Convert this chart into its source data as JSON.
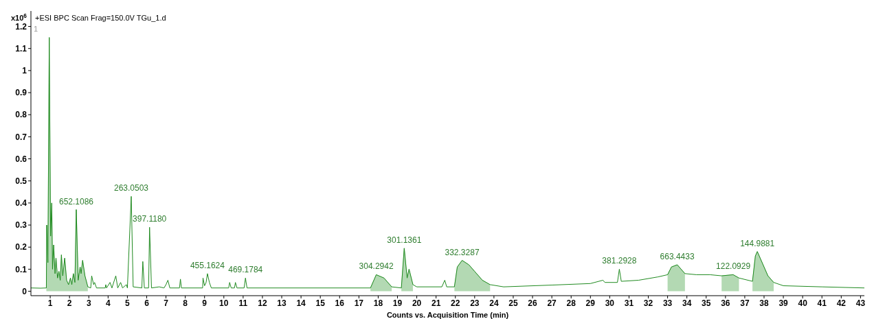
{
  "chart_data": {
    "type": "line",
    "title": "+ESI BPC Scan Frag=150.0V TGu_1.d",
    "xlabel": "Counts vs. Acquisition Time (min)",
    "ylabel": "x10$^{6}$",
    "x": [
      0,
      0.5,
      0.8,
      0.82,
      0.88,
      0.95,
      1.02,
      1.08,
      1.12,
      1.18,
      1.25,
      1.3,
      1.38,
      1.45,
      1.52,
      1.58,
      1.65,
      1.75,
      1.85,
      1.95,
      2.05,
      2.12,
      2.2,
      2.28,
      2.35,
      2.45,
      2.55,
      2.6,
      2.68,
      2.8,
      2.95,
      3.1,
      3.15,
      3.25,
      3.3,
      3.4,
      3.85,
      3.88,
      3.92,
      4.1,
      4.2,
      4.4,
      4.5,
      4.65,
      4.75,
      4.95,
      5.0,
      5.2,
      5.3,
      5.75,
      5.8,
      5.88,
      6.1,
      6.15,
      6.25,
      6.65,
      6.9,
      7.0,
      7.1,
      7.2,
      7.7,
      7.75,
      7.8,
      8.9,
      8.92,
      9.0,
      9.08,
      9.15,
      9.25,
      9.35,
      10.25,
      10.3,
      10.38,
      10.55,
      10.6,
      10.68,
      11.05,
      11.12,
      11.2,
      17.6,
      17.9,
      18.3,
      18.7,
      19.2,
      19.35,
      19.5,
      19.6,
      19.8,
      20.0,
      21.3,
      21.45,
      21.55,
      21.95,
      22.1,
      22.35,
      22.7,
      23.0,
      23.4,
      23.8,
      24.5,
      27,
      29,
      29.65,
      29.75,
      30.4,
      30.5,
      30.6,
      31.5,
      32.5,
      33.0,
      33.2,
      33.5,
      33.9,
      34.5,
      35.2,
      35.8,
      36.4,
      36.7,
      37.4,
      37.55,
      37.65,
      38.2,
      38.5,
      39,
      41,
      43.2
    ],
    "series": [
      {
        "type": "area",
        "color": "#b3d9b3",
        "x": [
          0.8,
          0.82,
          0.88,
          0.95,
          1.02,
          1.08,
          1.12,
          1.18,
          1.25,
          1.3,
          1.38,
          1.45,
          1.52,
          1.58,
          1.65,
          1.75,
          1.85,
          1.95,
          2.05,
          2.12,
          2.2,
          2.28,
          2.35,
          2.45,
          2.55,
          2.6,
          2.68,
          2.8,
          2.95
        ],
        "values": [
          0.015,
          0.3,
          0.13,
          1.15,
          0.25,
          0.4,
          0.1,
          0.21,
          0.08,
          0.15,
          0.06,
          0.09,
          0.05,
          0.165,
          0.07,
          0.15,
          0.05,
          0.03,
          0.06,
          0.03,
          0.08,
          0.04,
          0.37,
          0.05,
          0.11,
          0.08,
          0.14,
          0.07,
          0.02
        ]
      },
      {
        "type": "area",
        "color": "#b3d9b3",
        "x": [
          17.6,
          17.9,
          18.3,
          18.7
        ],
        "values": [
          0.015,
          0.075,
          0.06,
          0.02
        ]
      },
      {
        "type": "area",
        "color": "#b3d9b3",
        "x": [
          19.2,
          19.35,
          19.5,
          19.6,
          19.8
        ],
        "values": [
          0.015,
          0.195,
          0.06,
          0.1,
          0.03
        ]
      },
      {
        "type": "area",
        "color": "#b3d9b3",
        "x": [
          21.95,
          22.1,
          22.35,
          22.7,
          23.0,
          23.4,
          23.8
        ],
        "values": [
          0.02,
          0.11,
          0.14,
          0.12,
          0.09,
          0.05,
          0.03
        ]
      },
      {
        "type": "area",
        "color": "#b3d9b3",
        "x": [
          33.0,
          33.2,
          33.5,
          33.9
        ],
        "values": [
          0.075,
          0.11,
          0.12,
          0.08
        ]
      },
      {
        "type": "area",
        "color": "#b3d9b3",
        "x": [
          35.8,
          36.4,
          36.7
        ],
        "values": [
          0.07,
          0.075,
          0.06
        ]
      },
      {
        "type": "area",
        "color": "#b3d9b3",
        "x": [
          37.4,
          37.55,
          37.65,
          38.2,
          38.5
        ],
        "values": [
          0.045,
          0.16,
          0.18,
          0.07,
          0.04
        ]
      },
      {
        "color": "#1f8a1f",
        "values": [
          0.015,
          0.014,
          0.015,
          0.3,
          0.13,
          1.15,
          0.25,
          0.4,
          0.1,
          0.21,
          0.08,
          0.15,
          0.06,
          0.09,
          0.05,
          0.165,
          0.07,
          0.15,
          0.05,
          0.03,
          0.06,
          0.03,
          0.08,
          0.04,
          0.37,
          0.05,
          0.11,
          0.08,
          0.14,
          0.07,
          0.02,
          0.015,
          0.07,
          0.03,
          0.04,
          0.015,
          0.015,
          0.03,
          0.015,
          0.04,
          0.015,
          0.07,
          0.015,
          0.04,
          0.015,
          0.03,
          0.015,
          0.43,
          0.02,
          0.015,
          0.135,
          0.015,
          0.015,
          0.29,
          0.015,
          0.02,
          0.015,
          0.03,
          0.05,
          0.015,
          0.015,
          0.055,
          0.015,
          0.015,
          0.06,
          0.025,
          0.04,
          0.08,
          0.04,
          0.015,
          0.015,
          0.04,
          0.015,
          0.015,
          0.04,
          0.015,
          0.015,
          0.06,
          0.015,
          0.015,
          0.075,
          0.06,
          0.02,
          0.015,
          0.195,
          0.06,
          0.1,
          0.03,
          0.02,
          0.02,
          0.05,
          0.02,
          0.02,
          0.11,
          0.14,
          0.12,
          0.09,
          0.05,
          0.03,
          0.02,
          0.028,
          0.035,
          0.05,
          0.04,
          0.04,
          0.1,
          0.045,
          0.05,
          0.065,
          0.075,
          0.11,
          0.12,
          0.08,
          0.075,
          0.075,
          0.07,
          0.075,
          0.06,
          0.045,
          0.16,
          0.18,
          0.07,
          0.04,
          0.025,
          0.02,
          0.015
        ]
      }
    ],
    "xlim": [
      0,
      43.2
    ],
    "xticks": [
      1,
      2,
      3,
      4,
      5,
      6,
      7,
      8,
      9,
      10,
      11,
      12,
      13,
      14,
      15,
      16,
      17,
      18,
      19,
      20,
      21,
      22,
      23,
      24,
      25,
      26,
      27,
      28,
      29,
      30,
      31,
      32,
      33,
      34,
      35,
      36,
      37,
      38,
      39,
      40,
      41,
      42,
      43
    ],
    "ylim": [
      -0.02,
      1.27
    ],
    "yticks": [
      0,
      0.1,
      0.2,
      0.3,
      0.4,
      0.5,
      0.6,
      0.7,
      0.8,
      0.9,
      1,
      1.1,
      1.2
    ],
    "annotations": [
      "1",
      {
        "text": "652.1086",
        "x": 2.35,
        "y": 0.37
      },
      {
        "text": "263.0503",
        "x": 5.2,
        "y": 0.43
      },
      {
        "text": "397.1180",
        "x": 6.15,
        "y": 0.29
      },
      {
        "text": "455.1624",
        "x": 9.15,
        "y": 0.08
      },
      {
        "text": "469.1784",
        "x": 11.12,
        "y": 0.06
      },
      {
        "text": "304.2942",
        "x": 17.9,
        "y": 0.075
      },
      {
        "text": "301.1361",
        "x": 19.35,
        "y": 0.195
      },
      {
        "text": "332.3287",
        "x": 22.35,
        "y": 0.14
      },
      {
        "text": "381.2928",
        "x": 30.5,
        "y": 0.1
      },
      {
        "text": "663.4433",
        "x": 33.5,
        "y": 0.12
      },
      {
        "text": "122.0929",
        "x": 36.4,
        "y": 0.075
      },
      {
        "text": "144.9881",
        "x": 37.65,
        "y": 0.18
      }
    ],
    "grid": false
  }
}
